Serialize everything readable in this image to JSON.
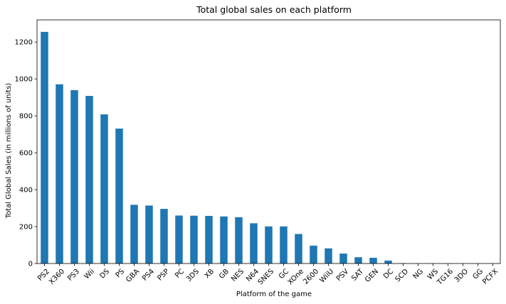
{
  "chart_data": {
    "type": "bar",
    "title": "Total global sales on each platform",
    "xlabel": "Platform of the game",
    "ylabel": "Total Global Sales (in millions of units)",
    "ylim": [
      0,
      1320
    ],
    "yticks": [
      0,
      200,
      400,
      600,
      800,
      1000,
      1200
    ],
    "grid": false,
    "bar_color": "#1f77b4",
    "categories": [
      "PS2",
      "X360",
      "PS3",
      "Wii",
      "DS",
      "PS",
      "GBA",
      "PS4",
      "PSP",
      "PC",
      "3DS",
      "XB",
      "GB",
      "NES",
      "N64",
      "SNES",
      "GC",
      "XOne",
      "2600",
      "WiiU",
      "PSV",
      "SAT",
      "GEN",
      "DC",
      "SCD",
      "NG",
      "WS",
      "TG16",
      "3DO",
      "GG",
      "PCFX"
    ],
    "values": [
      1255,
      971,
      939,
      908,
      808,
      731,
      318,
      314,
      296,
      260,
      259,
      258,
      255,
      251,
      218,
      201,
      201,
      160,
      97,
      82,
      54,
      34,
      31,
      16,
      2,
      1,
      1,
      0.2,
      0.1,
      0.04,
      0.03
    ]
  }
}
